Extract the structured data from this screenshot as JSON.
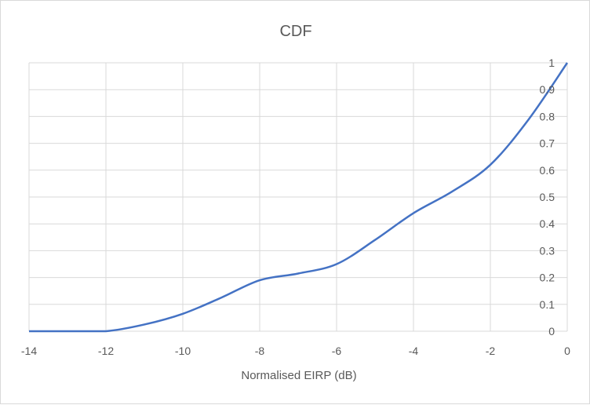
{
  "chart_data": {
    "type": "line",
    "title": "CDF",
    "xlabel": "Normalised EIRP (dB)",
    "ylabel": "",
    "xlim": [
      -14,
      0
    ],
    "ylim": [
      0,
      1
    ],
    "x_ticks": [
      -14,
      -12,
      -10,
      -8,
      -6,
      -4,
      -2,
      0
    ],
    "y_ticks": [
      0,
      0.1,
      0.2,
      0.3,
      0.4,
      0.5,
      0.6,
      0.7,
      0.8,
      0.9,
      1
    ],
    "grid": true,
    "legend": "none",
    "series": [
      {
        "color": "#4472c4",
        "x": [
          -14,
          -13,
          -12,
          -11,
          -10,
          -9,
          -8,
          -7,
          -6,
          -5,
          -4,
          -3,
          -2,
          -1,
          0
        ],
        "values": [
          0,
          0,
          0,
          0.025,
          0.065,
          0.125,
          0.19,
          0.215,
          0.25,
          0.34,
          0.44,
          0.52,
          0.62,
          0.79,
          1.0
        ]
      }
    ]
  }
}
